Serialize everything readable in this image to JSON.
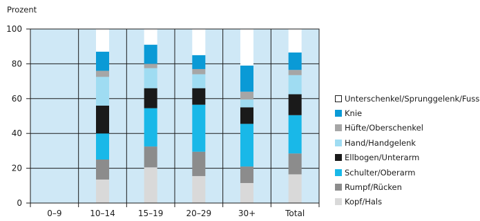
{
  "chart_data": {
    "type": "bar",
    "stacked": true,
    "ylabel": "Prozent",
    "ylim": [
      0,
      100
    ],
    "yticks": [
      0,
      20,
      40,
      60,
      80,
      100
    ],
    "categories": [
      "0–9",
      "10–14",
      "15–19",
      "20–29",
      "30+",
      "Total"
    ],
    "series": [
      {
        "name": "Kopf/Hals",
        "color": "#d9d9d9",
        "values": [
          0,
          13.5,
          20.5,
          15.5,
          11.5,
          16.5
        ]
      },
      {
        "name": "Rumpf/Rücken",
        "color": "#8c8c8c",
        "values": [
          0,
          11.5,
          12,
          14,
          9.5,
          12
        ]
      },
      {
        "name": "Schulter/Oberarm",
        "color": "#19b8e8",
        "values": [
          0,
          15,
          22,
          27,
          24.5,
          22
        ]
      },
      {
        "name": "Ellbogen/Unterarm",
        "color": "#1a1a1a",
        "values": [
          0,
          16,
          11.5,
          9.5,
          9.5,
          12
        ]
      },
      {
        "name": "Hand/Handgelenk",
        "color": "#9fdcf2",
        "values": [
          0,
          16.5,
          11.5,
          8,
          4.5,
          11
        ]
      },
      {
        "name": "Hüfte/Oberschenkel",
        "color": "#a6a6a6",
        "values": [
          0,
          3.5,
          2.5,
          3,
          4.5,
          3
        ]
      },
      {
        "name": "Knie",
        "color": "#0a9ad6",
        "values": [
          0,
          11,
          11,
          8,
          15,
          10
        ]
      },
      {
        "name": "Unterschenkel/Sprunggelenk/Fuss",
        "color": "#ffffff",
        "values": [
          0,
          13,
          9,
          15,
          21,
          13.5
        ]
      }
    ],
    "background": "#cfe8f6",
    "grid": "vertical dividers between categories, horizontal lines at y ticks"
  }
}
